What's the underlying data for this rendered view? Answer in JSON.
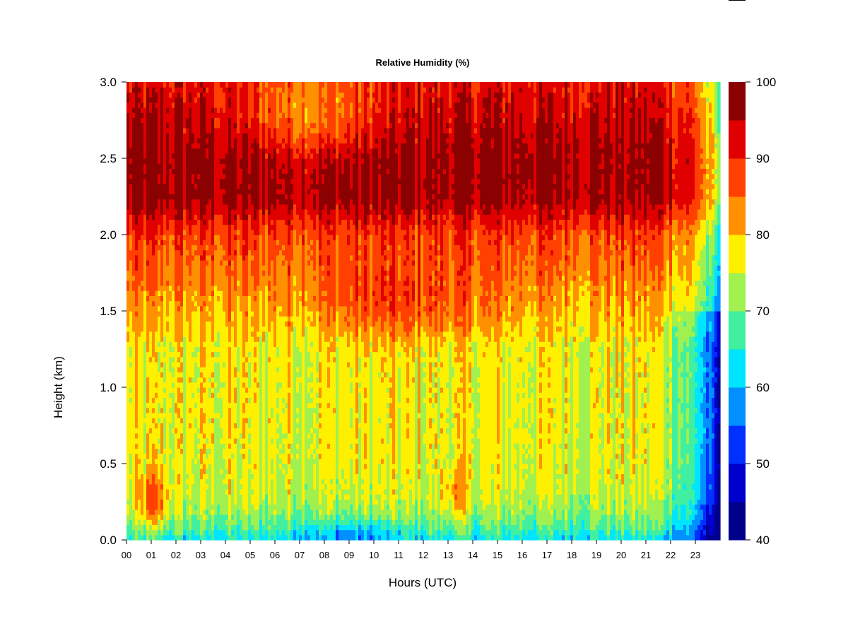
{
  "chart_data": {
    "type": "heatmap",
    "title": "Relative Humidity (%)",
    "xlabel": "Hours (UTC)",
    "ylabel": "Height (km)",
    "x_ticks": [
      "00",
      "01",
      "02",
      "03",
      "04",
      "05",
      "06",
      "07",
      "08",
      "09",
      "10",
      "11",
      "12",
      "13",
      "14",
      "15",
      "16",
      "17",
      "18",
      "19",
      "20",
      "21",
      "22",
      "23"
    ],
    "xlim": [
      0,
      24
    ],
    "y_ticks": [
      "0.0",
      "0.5",
      "1.0",
      "1.5",
      "2.0",
      "2.5",
      "3.0"
    ],
    "ylim": [
      0,
      3.0
    ],
    "colorbar": {
      "ticks": [
        "40",
        "50",
        "60",
        "70",
        "80",
        "90",
        "100"
      ],
      "range": [
        40,
        100
      ],
      "levels": [
        40,
        45,
        50,
        55,
        60,
        65,
        70,
        75,
        80,
        85,
        90,
        95,
        100
      ],
      "colors": [
        "#00008B",
        "#0000CD",
        "#0030FF",
        "#0090FF",
        "#00E5FF",
        "#40F0A0",
        "#A0F050",
        "#FFF000",
        "#FF9000",
        "#FF4000",
        "#E00000",
        "#8B0000"
      ]
    },
    "grid": false,
    "field_description_bands": [
      {
        "height_range_km": [
          0.0,
          0.1
        ],
        "rh_range": [
          45,
          65
        ]
      },
      {
        "height_range_km": [
          0.1,
          1.3
        ],
        "rh_range": [
          60,
          80
        ]
      },
      {
        "height_range_km": [
          1.3,
          2.0
        ],
        "rh_range": [
          75,
          90
        ]
      },
      {
        "height_range_km": [
          2.0,
          3.0
        ],
        "rh_range": [
          85,
          100
        ]
      }
    ]
  }
}
